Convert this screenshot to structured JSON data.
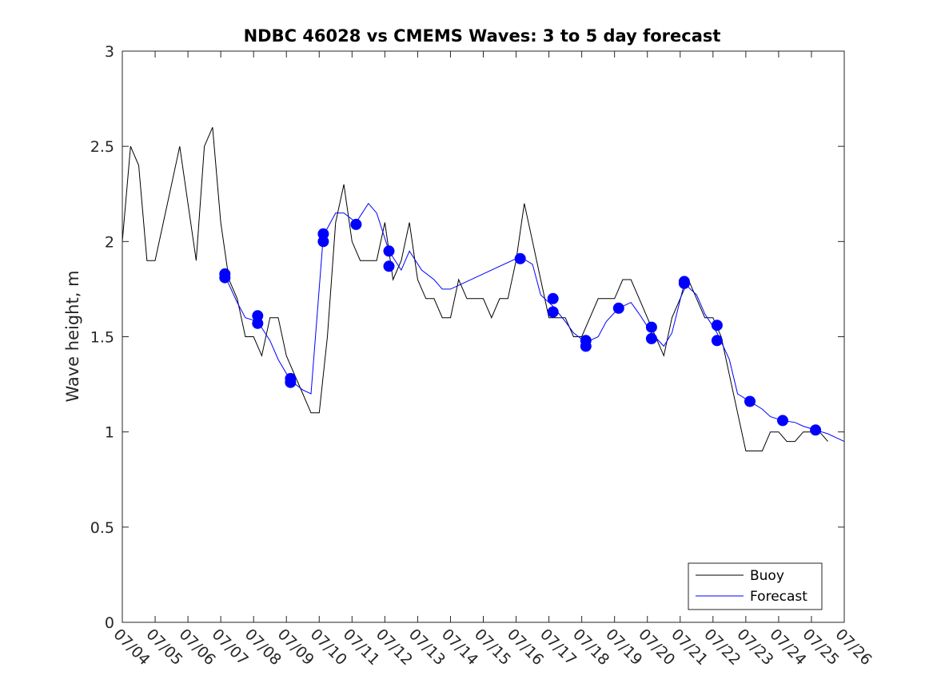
{
  "chart_data": {
    "type": "line",
    "title": "NDBC 46028 vs CMEMS Waves: 3 to 5 day forecast",
    "xlabel": "",
    "ylabel": "Wave height, m",
    "ylim": [
      0,
      3
    ],
    "xlim": [
      "07/04",
      "07/26"
    ],
    "x_ticks": [
      "07/04",
      "07/05",
      "07/06",
      "07/07",
      "07/08",
      "07/09",
      "07/10",
      "07/11",
      "07/12",
      "07/13",
      "07/14",
      "07/15",
      "07/16",
      "07/17",
      "07/18",
      "07/19",
      "07/20",
      "07/21",
      "07/22",
      "07/23",
      "07/24",
      "07/25",
      "07/26"
    ],
    "y_ticks": [
      "0",
      "0.5",
      "1",
      "1.5",
      "2",
      "2.5",
      "3"
    ],
    "grid": false,
    "legend_position": "bottom-right",
    "colors": {
      "buoy": "#000000",
      "forecast": "#0000ff"
    },
    "series": [
      {
        "name": "Buoy",
        "x": [
          "07/04 00:00",
          "07/04 06:00",
          "07/04 12:00",
          "07/04 18:00",
          "07/05 00:00",
          "07/05 06:00",
          "07/05 12:00",
          "07/05 18:00",
          "07/06 00:00",
          "07/06 06:00",
          "07/06 12:00",
          "07/06 18:00",
          "07/07 00:00",
          "07/07 06:00",
          "07/07 12:00",
          "07/07 18:00",
          "07/08 00:00",
          "07/08 06:00",
          "07/08 12:00",
          "07/08 18:00",
          "07/09 00:00",
          "07/09 06:00",
          "07/09 12:00",
          "07/09 18:00",
          "07/10 00:00",
          "07/10 06:00",
          "07/10 12:00",
          "07/10 18:00",
          "07/11 00:00",
          "07/11 06:00",
          "07/11 12:00",
          "07/11 18:00",
          "07/12 00:00",
          "07/12 06:00",
          "07/12 12:00",
          "07/12 18:00",
          "07/13 00:00",
          "07/13 06:00",
          "07/13 12:00",
          "07/13 18:00",
          "07/14 00:00",
          "07/14 06:00",
          "07/14 12:00",
          "07/14 18:00",
          "07/15 00:00",
          "07/15 06:00",
          "07/15 12:00",
          "07/15 18:00",
          "07/16 00:00",
          "07/16 06:00",
          "07/16 12:00",
          "07/16 18:00",
          "07/17 00:00",
          "07/17 06:00",
          "07/17 12:00",
          "07/17 18:00",
          "07/18 00:00",
          "07/18 06:00",
          "07/18 12:00",
          "07/18 18:00",
          "07/19 00:00",
          "07/19 06:00",
          "07/19 12:00",
          "07/19 18:00",
          "07/20 00:00",
          "07/20 06:00",
          "07/20 12:00",
          "07/20 18:00",
          "07/21 00:00",
          "07/21 06:00",
          "07/21 12:00",
          "07/21 18:00",
          "07/22 00:00",
          "07/22 06:00",
          "07/22 12:00",
          "07/22 18:00",
          "07/23 00:00",
          "07/23 06:00",
          "07/23 12:00",
          "07/23 18:00",
          "07/24 00:00",
          "07/24 06:00",
          "07/24 12:00",
          "07/24 18:00",
          "07/25 00:00",
          "07/25 06:00",
          "07/25 12:00"
        ],
        "values": [
          2.0,
          2.5,
          2.4,
          1.9,
          1.9,
          2.1,
          2.3,
          2.5,
          2.2,
          1.9,
          2.5,
          2.6,
          2.1,
          1.8,
          1.7,
          1.5,
          1.5,
          1.4,
          1.6,
          1.6,
          1.4,
          1.3,
          1.2,
          1.1,
          1.1,
          1.5,
          2.1,
          2.3,
          2.0,
          1.9,
          1.9,
          1.9,
          2.1,
          1.8,
          1.9,
          2.1,
          1.8,
          1.7,
          1.7,
          1.6,
          1.6,
          1.8,
          1.7,
          1.7,
          1.7,
          1.6,
          1.7,
          1.7,
          1.9,
          2.2,
          2.0,
          1.8,
          1.6,
          1.6,
          1.6,
          1.5,
          1.5,
          1.6,
          1.7,
          1.7,
          1.7,
          1.8,
          1.8,
          1.7,
          1.6,
          1.5,
          1.4,
          1.6,
          1.7,
          1.8,
          1.7,
          1.6,
          1.6,
          1.5,
          1.3,
          1.1,
          0.9,
          0.9,
          0.9,
          1.0,
          1.0,
          0.95,
          0.95,
          1.0,
          1.0,
          1.0,
          0.95
        ]
      },
      {
        "name": "Forecast",
        "x": [
          "07/07 03:00",
          "07/07 12:00",
          "07/07 18:00",
          "07/08 03:00",
          "07/08 12:00",
          "07/08 18:00",
          "07/09 03:00",
          "07/09 12:00",
          "07/09 18:00",
          "07/10 03:00",
          "07/10 12:00",
          "07/10 18:00",
          "07/11 03:00",
          "07/11 12:00",
          "07/11 18:00",
          "07/12 03:00",
          "07/12 12:00",
          "07/12 18:00",
          "07/13 03:00",
          "07/13 12:00",
          "07/13 18:00",
          "07/14 00:00",
          "07/16 03:00",
          "07/16 12:00",
          "07/16 18:00",
          "07/17 03:00",
          "07/17 12:00",
          "07/17 18:00",
          "07/18 03:00",
          "07/18 12:00",
          "07/18 18:00",
          "07/19 03:00",
          "07/19 12:00",
          "07/19 18:00",
          "07/20 03:00",
          "07/20 12:00",
          "07/20 18:00",
          "07/21 03:00",
          "07/21 12:00",
          "07/21 18:00",
          "07/22 03:00",
          "07/22 12:00",
          "07/22 18:00",
          "07/23 03:00",
          "07/23 12:00",
          "07/23 18:00",
          "07/24 03:00",
          "07/24 12:00",
          "07/24 18:00",
          "07/25 03:00",
          "07/25 12:00",
          "07/25 18:00",
          "07/26 00:00"
        ],
        "values": [
          1.82,
          1.68,
          1.6,
          1.58,
          1.48,
          1.38,
          1.27,
          1.22,
          1.2,
          2.03,
          2.15,
          2.15,
          2.1,
          2.2,
          2.15,
          1.95,
          1.85,
          1.95,
          1.85,
          1.8,
          1.75,
          1.75,
          1.92,
          1.88,
          1.72,
          1.66,
          1.58,
          1.52,
          1.47,
          1.5,
          1.58,
          1.65,
          1.68,
          1.62,
          1.52,
          1.45,
          1.52,
          1.78,
          1.72,
          1.62,
          1.52,
          1.38,
          1.2,
          1.16,
          1.12,
          1.08,
          1.06,
          1.05,
          1.03,
          1.01,
          0.99,
          0.97,
          0.95
        ]
      }
    ],
    "markers": {
      "series": "Forecast",
      "x": [
        "07/07 03:00",
        "07/07 03:00",
        "07/08 03:00",
        "07/08 03:00",
        "07/09 03:00",
        "07/09 03:00",
        "07/10 03:00",
        "07/10 03:00",
        "07/11 03:00",
        "07/12 03:00",
        "07/12 03:00",
        "07/16 03:00",
        "07/17 03:00",
        "07/17 03:00",
        "07/18 03:00",
        "07/18 03:00",
        "07/19 03:00",
        "07/20 03:00",
        "07/20 03:00",
        "07/21 03:00",
        "07/21 03:00",
        "07/22 03:00",
        "07/22 03:00",
        "07/23 03:00",
        "07/24 03:00",
        "07/25 03:00"
      ],
      "values": [
        1.83,
        1.81,
        1.61,
        1.57,
        1.28,
        1.26,
        2.04,
        2.0,
        2.09,
        1.95,
        1.87,
        1.91,
        1.7,
        1.63,
        1.48,
        1.45,
        1.65,
        1.55,
        1.49,
        1.79,
        1.78,
        1.56,
        1.48,
        1.16,
        1.06,
        1.01
      ]
    }
  }
}
